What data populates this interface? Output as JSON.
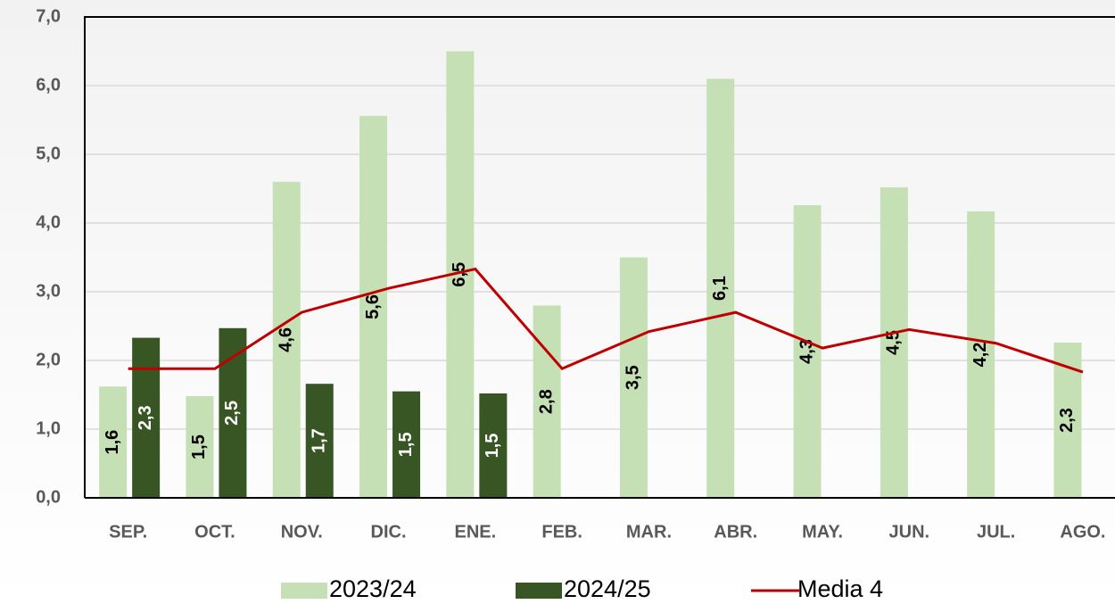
{
  "chart_data": {
    "type": "bar_line",
    "categories": [
      "SEP.",
      "OCT.",
      "NOV.",
      "DIC.",
      "ENE.",
      "FEB.",
      "MAR.",
      "ABR.",
      "MAY.",
      "JUN.",
      "JUL.",
      "AGO."
    ],
    "series": [
      {
        "name": "2023/24",
        "type": "bar",
        "color": "#c5e0b4",
        "values": [
          1.62,
          1.48,
          4.6,
          5.56,
          6.5,
          2.8,
          3.5,
          6.1,
          4.26,
          4.52,
          4.17,
          2.26
        ],
        "value_labels": [
          "1,6",
          "1,5",
          "4,6",
          "5,6",
          "6,5",
          "2,8",
          "3,5",
          "6,1",
          "4,3",
          "4,5",
          "4,2",
          "2,3"
        ]
      },
      {
        "name": "2024/25",
        "type": "bar",
        "color": "#375623",
        "values": [
          2.33,
          2.47,
          1.66,
          1.55,
          1.52,
          null,
          null,
          null,
          null,
          null,
          null,
          null
        ],
        "value_labels": [
          "2,3",
          "2,5",
          "1,7",
          "1,5",
          "1,5",
          null,
          null,
          null,
          null,
          null,
          null,
          null
        ]
      },
      {
        "name": "Media 4",
        "type": "line",
        "color": "#c00000",
        "values": [
          1.88,
          1.88,
          2.7,
          3.05,
          3.33,
          1.88,
          2.42,
          2.7,
          2.18,
          2.45,
          2.25,
          1.83
        ]
      }
    ],
    "ylim": [
      0,
      7
    ],
    "yticks": [
      {
        "value": 0,
        "label": "0,0"
      },
      {
        "value": 1,
        "label": "1,0"
      },
      {
        "value": 2,
        "label": "2,0"
      },
      {
        "value": 3,
        "label": "3,0"
      },
      {
        "value": 4,
        "label": "4,0"
      },
      {
        "value": 5,
        "label": "5,0"
      },
      {
        "value": 6,
        "label": "6,0"
      },
      {
        "value": 7,
        "label": "7,0"
      }
    ],
    "grid": true,
    "legend": "bottom"
  }
}
